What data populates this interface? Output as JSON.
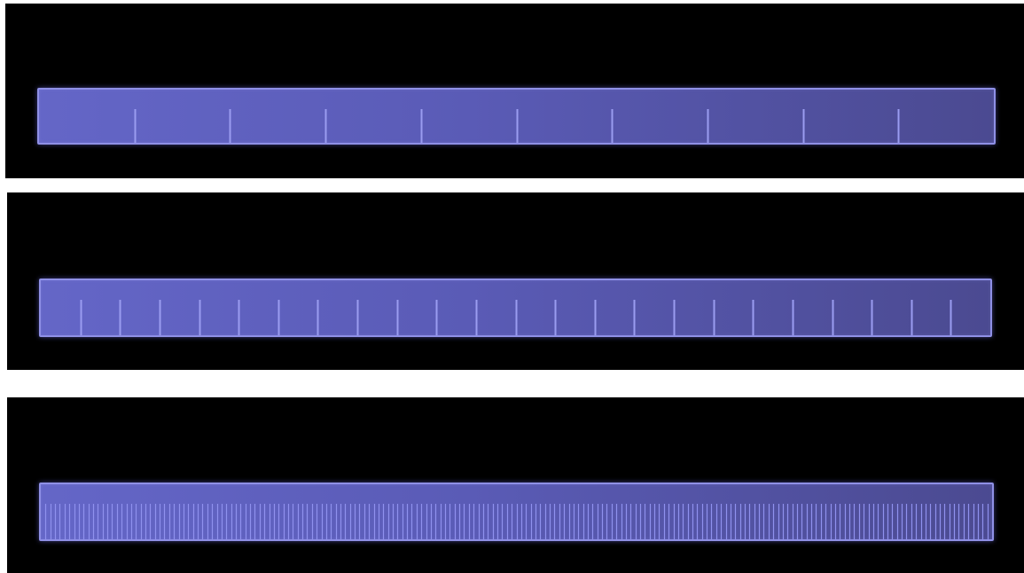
{
  "rulers": [
    {
      "divisions": 10
    },
    {
      "divisions": 24
    },
    {
      "divisions": 200
    }
  ],
  "colors": {
    "background": "#000000",
    "ruler_fill_left": "#6466c7",
    "ruler_fill_right": "#4b4a91",
    "ruler_border": "#8f90e6",
    "tick": "#9a9cf0"
  }
}
